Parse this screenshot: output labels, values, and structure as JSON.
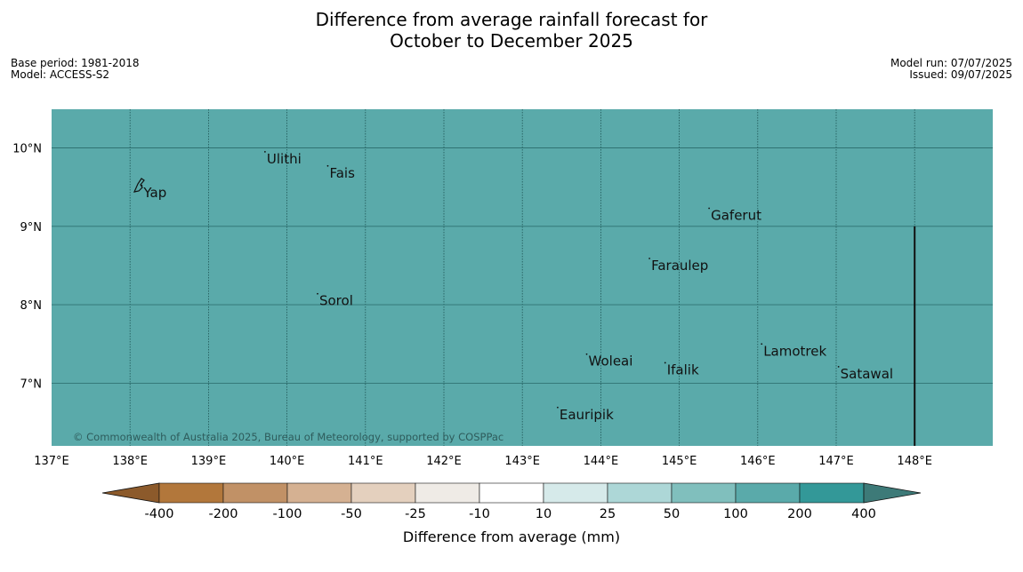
{
  "title": {
    "line1": "Difference from average rainfall forecast for",
    "line2": "October to December 2025"
  },
  "meta": {
    "base_period": "Base period: 1981-2018",
    "model": "Model: ACCESS-S2",
    "model_run": "Model run: 07/07/2025",
    "issued": "Issued: 09/07/2025"
  },
  "map": {
    "fill_color": "#5aaaaa",
    "extent": {
      "lon": [
        137,
        149
      ],
      "lat": [
        6.2,
        10.5
      ]
    },
    "lon_ticks": [
      137,
      138,
      139,
      140,
      141,
      142,
      143,
      144,
      145,
      146,
      147,
      148
    ],
    "lon_labels": [
      "137°E",
      "138°E",
      "139°E",
      "140°E",
      "141°E",
      "142°E",
      "143°E",
      "144°E",
      "145°E",
      "146°E",
      "147°E",
      "148°E"
    ],
    "lat_ticks": [
      10,
      9,
      8,
      7
    ],
    "lat_labels": [
      "10°N",
      "9°N",
      "8°N",
      "7°N"
    ],
    "copyright": "© Commonwealth of Australia 2025, Bureau of Meteorology, supported by COSPPac",
    "boundary_lon": 148,
    "places": [
      {
        "name": "Yap",
        "lon": 138.15,
        "lat": 9.52
      },
      {
        "name": "Ulithi",
        "lon": 139.72,
        "lat": 9.95
      },
      {
        "name": "Fais",
        "lon": 140.52,
        "lat": 9.77
      },
      {
        "name": "Gaferut",
        "lon": 145.38,
        "lat": 9.23
      },
      {
        "name": "Faraulep",
        "lon": 144.62,
        "lat": 8.59
      },
      {
        "name": "Sorol",
        "lon": 140.39,
        "lat": 8.14
      },
      {
        "name": "Lamotrek",
        "lon": 146.05,
        "lat": 7.5
      },
      {
        "name": "Woleai",
        "lon": 143.82,
        "lat": 7.37
      },
      {
        "name": "Ifalik",
        "lon": 144.82,
        "lat": 7.26
      },
      {
        "name": "Satawal",
        "lon": 147.03,
        "lat": 7.21
      },
      {
        "name": "Eauripik",
        "lon": 143.45,
        "lat": 6.69
      }
    ]
  },
  "legend": {
    "label": "Difference from average (mm)",
    "tick_labels": [
      "-400",
      "-200",
      "-100",
      "-50",
      "-25",
      "-10",
      "10",
      "25",
      "50",
      "100",
      "200",
      "400"
    ],
    "bin_colors": [
      "#b2773b",
      "#c19166",
      "#d5b192",
      "#e4d0be",
      "#efebe6",
      "#ffffff",
      "#d6eaea",
      "#add7d7",
      "#80bfbd",
      "#5aaaaa",
      "#339898"
    ],
    "low_color": "#8c5a2b",
    "high_color": "#3d7a78"
  }
}
